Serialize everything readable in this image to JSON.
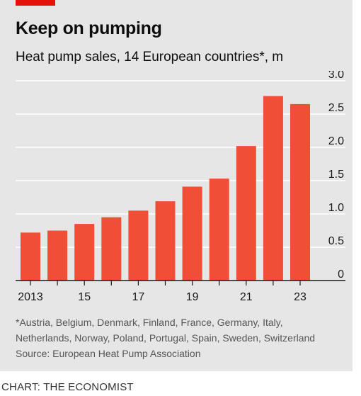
{
  "header": {
    "title": "Keep on pumping",
    "subtitle": "Heat pump sales, 14 European countries*, m"
  },
  "chart_data": {
    "type": "bar",
    "title": "Keep on pumping",
    "subtitle": "Heat pump sales, 14 European countries*, m",
    "categories": [
      "2013",
      "2014",
      "2015",
      "2016",
      "2017",
      "2018",
      "2019",
      "2020",
      "2021",
      "2022",
      "2023"
    ],
    "x_tick_labels": [
      "2013",
      "15",
      "17",
      "19",
      "21",
      "23"
    ],
    "y_tick_labels": [
      "0",
      "0.5",
      "1.0",
      "1.5",
      "2.0",
      "2.5",
      "3.0"
    ],
    "values": [
      0.72,
      0.75,
      0.85,
      0.95,
      1.05,
      1.19,
      1.41,
      1.53,
      2.02,
      2.77,
      2.65
    ],
    "ylim": [
      0,
      3.0
    ],
    "y_axis_position": "right",
    "grid": true,
    "bar_color": "#f04e36",
    "grid_color": "#ffffff",
    "background_color": "#e6e6e6"
  },
  "footnote": {
    "line1": "*Austria, Belgium, Denmark, Finland, France, Germany, Italy,",
    "line2": "Netherlands, Norway, Poland, Portugal, Spain, Sweden, Switzerland",
    "source": "Source: European Heat Pump Association"
  },
  "credit": "CHART: THE ECONOMIST"
}
